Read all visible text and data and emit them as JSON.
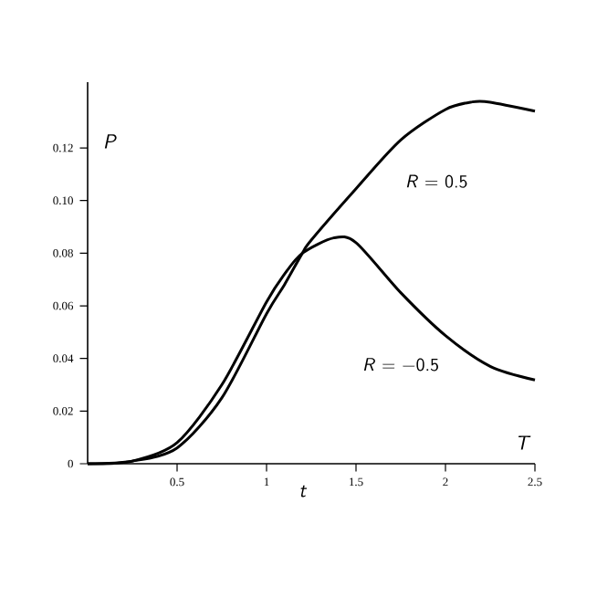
{
  "chart_data": {
    "type": "line",
    "xlabel": "T",
    "ylabel": "P",
    "annotations": [
      "t"
    ],
    "xlim": [
      0,
      2.5
    ],
    "ylim": [
      0,
      0.145
    ],
    "xticks": [
      0.5,
      1,
      1.5,
      2,
      2.5
    ],
    "yticks": [
      0,
      0.02,
      0.04,
      0.06,
      0.08,
      {
        "value": 0.1,
        "label": "0.10"
      },
      0.12
    ],
    "grid": false,
    "legend": false,
    "marker": "none",
    "line_style": "solid",
    "series": [
      {
        "name": "*R* = 0.5",
        "color": "#000000",
        "x": [
          0,
          0.25,
          0.5,
          0.75,
          1.0,
          1.1,
          1.2,
          1.25,
          1.5,
          1.75,
          2.0,
          2.15,
          2.25,
          2.5
        ],
        "values": [
          0,
          0.001,
          0.006,
          0.025,
          0.057,
          0.068,
          0.08,
          0.085,
          0.1045,
          0.123,
          0.1346,
          0.1375,
          0.1374,
          0.134
        ]
      },
      {
        "name": "*R* = −0.5",
        "color": "#000000",
        "x": [
          0,
          0.25,
          0.5,
          0.75,
          1.0,
          1.1,
          1.2,
          1.375,
          1.5,
          1.75,
          2.0,
          2.25,
          2.5
        ],
        "values": [
          0,
          0.001,
          0.008,
          0.03,
          0.0615,
          0.072,
          0.08,
          0.0858,
          0.084,
          0.065,
          0.0487,
          0.037,
          0.0318
        ]
      }
    ]
  }
}
